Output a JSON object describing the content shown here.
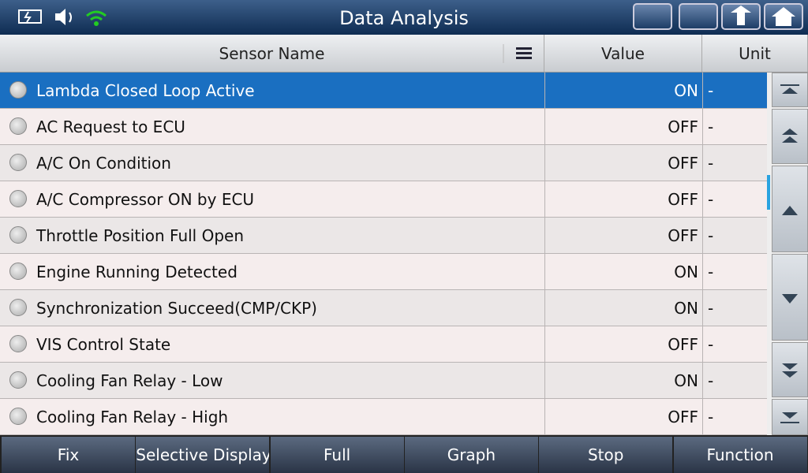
{
  "header": {
    "title": "Data Analysis"
  },
  "table": {
    "columns": [
      "Sensor Name",
      "Value",
      "Unit"
    ],
    "rows": [
      [
        "Lambda Closed Loop Active",
        "ON",
        "-"
      ],
      [
        "AC Request to ECU",
        "OFF",
        "-"
      ],
      [
        "A/C On Condition",
        "OFF",
        "-"
      ],
      [
        "A/C Compressor ON by ECU",
        "OFF",
        "-"
      ],
      [
        "Throttle Position Full Open",
        "OFF",
        "-"
      ],
      [
        "Engine Running Detected",
        "ON",
        "-"
      ],
      [
        "Synchronization Succeed(CMP/CKP)",
        "ON",
        "-"
      ],
      [
        "VIS Control State",
        "OFF",
        "-"
      ],
      [
        "Cooling Fan Relay - Low",
        "ON",
        "-"
      ],
      [
        "Cooling Fan Relay - High",
        "OFF",
        "-"
      ]
    ],
    "selected_row": 0
  },
  "footer": {
    "buttons": [
      "Fix",
      "Selective Display",
      "Full",
      "Graph",
      "Stop",
      "Function"
    ]
  }
}
